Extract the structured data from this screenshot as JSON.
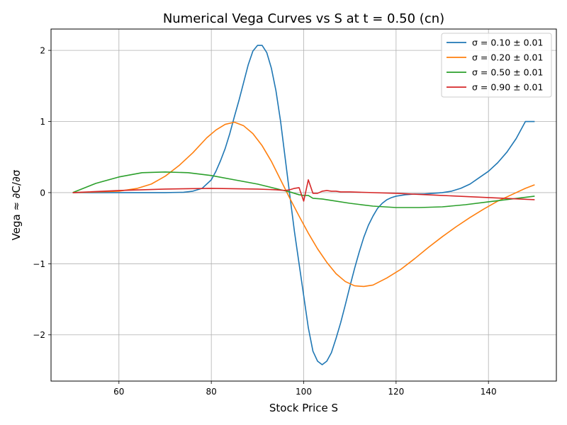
{
  "chart_data": {
    "type": "line",
    "title": "Numerical Vega Curves vs S at t = 0.50 (cn)",
    "xlabel": "Stock Price S",
    "ylabel": "Vega ≈ ∂C/∂σ",
    "xlim": [
      45.3,
      154.7
    ],
    "ylim": [
      -2.65,
      2.3
    ],
    "xticks": [
      60,
      80,
      100,
      120,
      140
    ],
    "xtick_labels": [
      "60",
      "80",
      "100",
      "120",
      "140"
    ],
    "yticks": [
      -2,
      -1,
      0,
      1,
      2
    ],
    "ytick_labels": [
      "−2",
      "−1",
      "0",
      "1",
      "2"
    ],
    "grid": true,
    "legend_position": "top-right",
    "series": [
      {
        "name": "σ = 0.10 ± 0.01",
        "color": "#1f77b4",
        "x": [
          50,
          60,
          70,
          74,
          76,
          78,
          80,
          81,
          82,
          83,
          84,
          85,
          86,
          87,
          88,
          89,
          90,
          91,
          92,
          93,
          94,
          95,
          96,
          97,
          98,
          99,
          100,
          101,
          102,
          103,
          104,
          105,
          106,
          107,
          108,
          109,
          110,
          111,
          112,
          113,
          114,
          115,
          116,
          117,
          118,
          119,
          120,
          122,
          124,
          126,
          128,
          130,
          132,
          134,
          136,
          138,
          140,
          142,
          144,
          146,
          148,
          150
        ],
        "y": [
          0,
          0,
          0,
          0.005,
          0.02,
          0.06,
          0.18,
          0.3,
          0.45,
          0.62,
          0.83,
          1.07,
          1.3,
          1.55,
          1.8,
          1.99,
          2.07,
          2.07,
          1.97,
          1.75,
          1.43,
          1.0,
          0.48,
          -0.04,
          -0.55,
          -1.0,
          -1.45,
          -1.9,
          -2.23,
          -2.37,
          -2.42,
          -2.37,
          -2.25,
          -2.05,
          -1.83,
          -1.58,
          -1.32,
          -1.07,
          -0.84,
          -0.63,
          -0.46,
          -0.33,
          -0.22,
          -0.15,
          -0.1,
          -0.07,
          -0.05,
          -0.03,
          -0.02,
          -0.02,
          -0.01,
          0,
          0.02,
          0.06,
          0.12,
          0.21,
          0.3,
          0.42,
          0.57,
          0.76,
          1.0,
          1.0
        ]
      },
      {
        "name": "σ = 0.20 ± 0.01",
        "color": "#ff7f0e",
        "x": [
          50,
          55,
          60,
          64,
          67,
          70,
          73,
          76,
          79,
          81,
          83,
          85,
          87,
          89,
          91,
          93,
          95,
          97,
          99,
          101,
          103,
          105,
          107,
          109,
          111,
          113,
          115,
          118,
          121,
          124,
          127,
          130,
          133,
          136,
          139,
          142,
          145,
          148,
          150
        ],
        "y": [
          0,
          0.01,
          0.02,
          0.06,
          0.12,
          0.23,
          0.38,
          0.56,
          0.77,
          0.88,
          0.96,
          0.99,
          0.94,
          0.83,
          0.66,
          0.44,
          0.18,
          -0.08,
          -0.33,
          -0.57,
          -0.79,
          -0.98,
          -1.14,
          -1.25,
          -1.31,
          -1.32,
          -1.3,
          -1.2,
          -1.08,
          -0.93,
          -0.77,
          -0.62,
          -0.48,
          -0.35,
          -0.23,
          -0.12,
          -0.03,
          0.06,
          0.11
        ]
      },
      {
        "name": "σ = 0.50 ± 0.01",
        "color": "#2ca02c",
        "x": [
          50,
          55,
          60,
          65,
          70,
          75,
          80,
          85,
          90,
          95,
          97,
          99,
          100,
          101,
          102,
          104,
          105,
          110,
          115,
          120,
          125,
          130,
          135,
          140,
          145,
          150
        ],
        "y": [
          0,
          0.13,
          0.22,
          0.28,
          0.29,
          0.28,
          0.24,
          0.18,
          0.12,
          0.04,
          0.01,
          -0.03,
          -0.04,
          -0.04,
          -0.08,
          -0.09,
          -0.1,
          -0.15,
          -0.19,
          -0.21,
          -0.21,
          -0.2,
          -0.17,
          -0.13,
          -0.09,
          -0.05
        ]
      },
      {
        "name": "σ = 0.90 ± 0.01",
        "color": "#d62728",
        "x": [
          50,
          60,
          70,
          80,
          90,
          94,
          96,
          97,
          98,
          99,
          100,
          101,
          102,
          103,
          104,
          105,
          106,
          107,
          108,
          110,
          120,
          130,
          140,
          150
        ],
        "y": [
          0,
          0.03,
          0.05,
          0.06,
          0.05,
          0.04,
          0.03,
          0.04,
          0.06,
          0.07,
          -0.12,
          0.18,
          -0.01,
          -0.01,
          0.02,
          0.03,
          0.02,
          0.02,
          0.01,
          0.01,
          -0.01,
          -0.04,
          -0.07,
          -0.1
        ]
      }
    ]
  }
}
